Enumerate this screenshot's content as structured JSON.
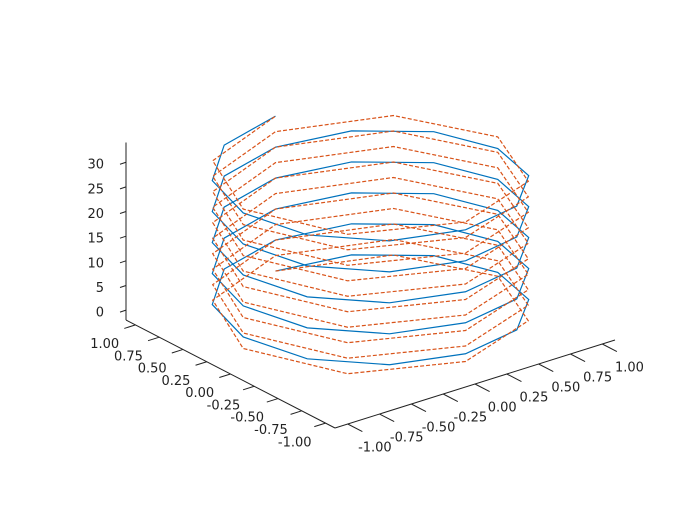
{
  "chart_data": {
    "type": "line3d",
    "xlim": [
      -1.1,
      1.1
    ],
    "ylim": [
      -1.1,
      1.1
    ],
    "zlim": [
      -2,
      34
    ],
    "xticks": [
      {
        "value": -1,
        "label": "-1.00"
      },
      {
        "value": -0.75,
        "label": "-0.75"
      },
      {
        "value": -0.5,
        "label": "-0.50"
      },
      {
        "value": -0.25,
        "label": "-0.25"
      },
      {
        "value": 0,
        "label": "0.00"
      },
      {
        "value": 0.25,
        "label": "0.25"
      },
      {
        "value": 0.5,
        "label": "0.50"
      },
      {
        "value": 0.75,
        "label": "0.75"
      },
      {
        "value": 1,
        "label": "1.00"
      }
    ],
    "yticks": [
      {
        "value": -1,
        "label": "-1.00"
      },
      {
        "value": -0.75,
        "label": "-0.75"
      },
      {
        "value": -0.5,
        "label": "-0.50"
      },
      {
        "value": -0.25,
        "label": "-0.25"
      },
      {
        "value": 0,
        "label": "0.00"
      },
      {
        "value": 0.25,
        "label": "0.25"
      },
      {
        "value": 0.5,
        "label": "0.50"
      },
      {
        "value": 0.75,
        "label": "0.75"
      },
      {
        "value": 1,
        "label": "1.00"
      }
    ],
    "zticks": [
      0,
      5,
      10,
      15,
      20,
      25,
      30
    ],
    "series": [
      {
        "color": "#0072bd",
        "linestyle": "solid",
        "x": [
          0,
          0.5,
          0.87,
          1,
          0.87,
          0.5,
          0,
          -0.5,
          -0.87,
          -1,
          -0.87,
          -0.5,
          0,
          0.5,
          0.87,
          1,
          0.87,
          0.5,
          0,
          -0.5,
          -0.87,
          -1,
          -0.87,
          -0.5,
          0,
          0.5,
          0.87,
          1,
          0.87,
          0.5,
          0,
          -0.5,
          -0.87,
          -1,
          -0.87,
          -0.5,
          0,
          0.5,
          0.87,
          1,
          0.87,
          0.5,
          0,
          -0.5,
          -0.87,
          -1,
          -0.87,
          -0.5,
          0,
          0.5,
          0.87,
          1,
          0.87,
          0.5,
          0,
          -0.5,
          -0.87,
          -1,
          -0.87,
          -0.5,
          0
        ],
        "y": [
          1,
          0.87,
          0.5,
          0,
          -0.5,
          -0.87,
          -1,
          -0.87,
          -0.5,
          0,
          0.5,
          0.87,
          1,
          0.87,
          0.5,
          0,
          -0.5,
          -0.87,
          -1,
          -0.87,
          -0.5,
          0,
          0.5,
          0.87,
          1,
          0.87,
          0.5,
          0,
          -0.5,
          -0.87,
          -1,
          -0.87,
          -0.5,
          0,
          0.5,
          0.87,
          1,
          0.87,
          0.5,
          0,
          -0.5,
          -0.87,
          -1,
          -0.87,
          -0.5,
          0,
          0.5,
          0.87,
          1,
          0.87,
          0.5,
          0,
          -0.5,
          -0.87,
          -1,
          -0.87,
          -0.5,
          0,
          0.5,
          0.87,
          1
        ],
        "z": [
          0,
          0.52,
          1.05,
          1.57,
          2.09,
          2.62,
          3.14,
          3.67,
          4.19,
          4.71,
          5.24,
          5.76,
          6.28,
          6.81,
          7.33,
          7.85,
          8.38,
          8.9,
          9.42,
          9.95,
          10.47,
          11,
          11.52,
          12.04,
          12.57,
          13.09,
          13.61,
          14.14,
          14.66,
          15.18,
          15.71,
          16.23,
          16.76,
          17.28,
          17.8,
          18.33,
          18.85,
          19.37,
          19.9,
          20.42,
          20.94,
          21.47,
          21.99,
          22.51,
          23.04,
          23.56,
          24.09,
          24.61,
          25.13,
          25.66,
          26.18,
          26.7,
          27.23,
          27.75,
          28.27,
          28.8,
          29.32,
          29.85,
          30.37,
          30.89,
          31.42
        ]
      },
      {
        "color": "#d95319",
        "linestyle": "dashed",
        "x": [
          0,
          0.71,
          1,
          0.71,
          0,
          -0.71,
          -1,
          -0.71,
          0,
          0.71,
          1,
          0.71,
          0,
          -0.71,
          -1,
          -0.71,
          0,
          0.71,
          1,
          0.71,
          0,
          -0.71,
          -1,
          -0.71,
          0,
          0.71,
          1,
          0.71,
          0,
          -0.71,
          -1,
          -0.71,
          0,
          0.71,
          1,
          0.71,
          0,
          -0.71,
          -1,
          -0.71,
          0,
          0.71,
          1,
          0.71,
          0,
          -0.71,
          -1,
          -0.71,
          0,
          0.71,
          1,
          0.71,
          0,
          -0.71,
          -1,
          -0.71,
          0,
          0.71,
          1,
          0.71,
          0,
          -0.71,
          -1,
          -0.71,
          0,
          0.71,
          1,
          0.71,
          0,
          -0.71,
          -1,
          -0.71,
          0,
          0.71,
          1,
          0.71,
          0,
          -0.71,
          -1,
          -0.71,
          0
        ],
        "y": [
          1,
          0.71,
          0,
          -0.71,
          -1,
          -0.71,
          0,
          0.71,
          1,
          0.71,
          0,
          -0.71,
          -1,
          -0.71,
          0,
          0.71,
          1,
          0.71,
          0,
          -0.71,
          -1,
          -0.71,
          0,
          0.71,
          1,
          0.71,
          0,
          -0.71,
          -1,
          -0.71,
          0,
          0.71,
          1,
          0.71,
          0,
          -0.71,
          -1,
          -0.71,
          0,
          0.71,
          1,
          0.71,
          0,
          -0.71,
          -1,
          -0.71,
          0,
          0.71,
          1,
          0.71,
          0,
          -0.71,
          -1,
          -0.71,
          0,
          0.71,
          1,
          0.71,
          0,
          -0.71,
          -1,
          -0.71,
          0,
          0.71,
          1,
          0.71,
          0,
          -0.71,
          -1,
          -0.71,
          0,
          0.71,
          1,
          0.71,
          0,
          -0.71,
          -1,
          -0.71,
          0,
          0.71,
          1
        ],
        "z": [
          0,
          0.39,
          0.79,
          1.18,
          1.57,
          1.96,
          2.36,
          2.75,
          3.14,
          3.53,
          3.93,
          4.32,
          4.71,
          5.11,
          5.5,
          5.89,
          6.28,
          6.68,
          7.07,
          7.46,
          7.85,
          8.25,
          8.64,
          9.03,
          9.42,
          9.82,
          10.21,
          10.6,
          11,
          11.39,
          11.78,
          12.17,
          12.57,
          12.96,
          13.35,
          13.74,
          14.14,
          14.53,
          14.92,
          15.32,
          15.71,
          16.1,
          16.49,
          16.89,
          17.28,
          17.67,
          18.06,
          18.46,
          18.85,
          19.24,
          19.63,
          20.03,
          20.42,
          20.81,
          21.21,
          21.6,
          21.99,
          22.38,
          22.78,
          23.17,
          23.56,
          23.95,
          24.35,
          24.74,
          25.13,
          25.53,
          25.92,
          26.31,
          26.7,
          27.1,
          27.49,
          27.88,
          28.27,
          28.67,
          29.06,
          29.45,
          29.85,
          30.24,
          30.63,
          31.02,
          31.42
        ]
      }
    ]
  }
}
